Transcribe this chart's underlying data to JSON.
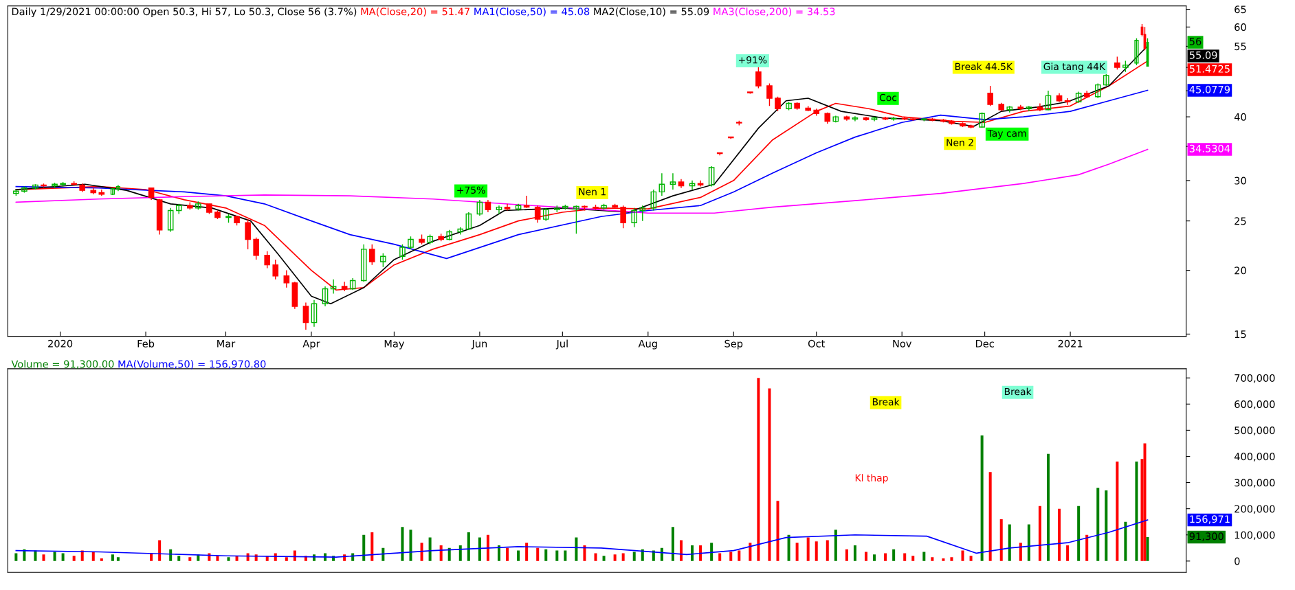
{
  "chart_data": [
    {
      "type": "candlestick",
      "title": "Daily 1/29/2021 00:00:00 Open 50.3, Hi 57, Lo 50.3, Close 56 (3.7%)",
      "log": true,
      "legend": "top left",
      "xlim": [
        "2019-12-13",
        "2021-02-12"
      ],
      "xticks": [
        {
          "value": "2020-01-01",
          "label": "2020"
        },
        {
          "value": "2020-02-01",
          "label": "Feb"
        },
        {
          "value": "2020-03-01",
          "label": "Mar"
        },
        {
          "value": "2020-04-01",
          "label": "Apr"
        },
        {
          "value": "2020-05-01",
          "label": "May"
        },
        {
          "value": "2020-06-01",
          "label": "Jun"
        },
        {
          "value": "2020-07-01",
          "label": "Jul"
        },
        {
          "value": "2020-08-01",
          "label": "Aug"
        },
        {
          "value": "2020-09-01",
          "label": "Sep"
        },
        {
          "value": "2020-10-01",
          "label": "Oct"
        },
        {
          "value": "2020-11-01",
          "label": "Nov"
        },
        {
          "value": "2020-12-01",
          "label": "Dec"
        },
        {
          "value": "2021-01-01",
          "label": "2021"
        }
      ],
      "ylim": [
        14.85,
        66
      ],
      "yticks": [
        15,
        20,
        25,
        30,
        {
          "value": 35,
          "label": null
        },
        40,
        {
          "value": 45,
          "label": null
        },
        {
          "value": 50,
          "label": null
        },
        55,
        60,
        65
      ],
      "x": [
        "2019-12-16",
        "2019-12-19",
        "2019-12-23",
        "2019-12-26",
        "2019-12-30",
        "2020-01-02",
        "2020-01-06",
        "2020-01-09",
        "2020-01-13",
        "2020-01-16",
        "2020-01-20",
        "2020-01-22",
        "2020-02-03",
        "2020-02-06",
        "2020-02-10",
        "2020-02-13",
        "2020-02-17",
        "2020-02-20",
        "2020-02-24",
        "2020-02-27",
        "2020-03-02",
        "2020-03-05",
        "2020-03-09",
        "2020-03-12",
        "2020-03-16",
        "2020-03-19",
        "2020-03-23",
        "2020-03-26",
        "2020-03-30",
        "2020-04-02",
        "2020-04-06",
        "2020-04-09",
        "2020-04-13",
        "2020-04-16",
        "2020-04-20",
        "2020-04-23",
        "2020-04-27",
        "2020-05-04",
        "2020-05-07",
        "2020-05-11",
        "2020-05-14",
        "2020-05-18",
        "2020-05-21",
        "2020-05-25",
        "2020-05-28",
        "2020-06-01",
        "2020-06-04",
        "2020-06-08",
        "2020-06-11",
        "2020-06-15",
        "2020-06-18",
        "2020-06-22",
        "2020-06-25",
        "2020-06-29",
        "2020-07-02",
        "2020-07-06",
        "2020-07-09",
        "2020-07-13",
        "2020-07-16",
        "2020-07-20",
        "2020-07-23",
        "2020-07-27",
        "2020-07-30",
        "2020-08-03",
        "2020-08-06",
        "2020-08-10",
        "2020-08-13",
        "2020-08-17",
        "2020-08-20",
        "2020-08-24",
        "2020-08-27",
        "2020-08-31",
        "2020-09-03",
        "2020-09-07",
        "2020-09-10",
        "2020-09-14",
        "2020-09-17",
        "2020-09-21",
        "2020-09-24",
        "2020-09-28",
        "2020-10-01",
        "2020-10-05",
        "2020-10-08",
        "2020-10-12",
        "2020-10-15",
        "2020-10-19",
        "2020-10-22",
        "2020-10-26",
        "2020-10-29",
        "2020-11-02",
        "2020-11-05",
        "2020-11-09",
        "2020-11-12",
        "2020-11-16",
        "2020-11-19",
        "2020-11-23",
        "2020-11-26",
        "2020-11-30",
        "2020-12-03",
        "2020-12-07",
        "2020-12-10",
        "2020-12-14",
        "2020-12-17",
        "2020-12-21",
        "2020-12-24",
        "2020-12-28",
        "2020-12-31",
        "2021-01-04",
        "2021-01-07",
        "2021-01-11",
        "2021-01-14",
        "2021-01-18",
        "2021-01-21",
        "2021-01-25",
        "2021-01-27",
        "2021-01-28",
        "2021-01-29"
      ],
      "ohlc": [
        [
          28.3,
          28.8,
          28.0,
          28.6
        ],
        [
          28.6,
          29.2,
          28.4,
          29.0
        ],
        [
          29.0,
          29.5,
          28.8,
          29.4
        ],
        [
          29.4,
          29.6,
          29.1,
          29.3
        ],
        [
          29.3,
          29.7,
          29.0,
          29.5
        ],
        [
          29.5,
          29.8,
          29.2,
          29.6
        ],
        [
          29.6,
          29.9,
          29.3,
          29.5
        ],
        [
          29.4,
          29.6,
          28.5,
          28.7
        ],
        [
          28.7,
          29.0,
          28.2,
          28.4
        ],
        [
          28.4,
          28.8,
          28.0,
          28.2
        ],
        [
          28.2,
          29.0,
          28.1,
          28.9
        ],
        [
          28.9,
          29.4,
          28.6,
          29.2
        ],
        [
          29.0,
          29.0,
          27.5,
          27.8
        ],
        [
          27.5,
          27.6,
          23.5,
          24.0
        ],
        [
          24.0,
          26.5,
          23.8,
          26.2
        ],
        [
          26.2,
          27.0,
          25.8,
          26.8
        ],
        [
          26.8,
          27.2,
          26.3,
          26.5
        ],
        [
          26.5,
          27.3,
          26.3,
          27.0
        ],
        [
          27.0,
          27.0,
          25.8,
          26.0
        ],
        [
          26.0,
          26.2,
          25.2,
          25.4
        ],
        [
          25.4,
          25.8,
          24.8,
          25.5
        ],
        [
          25.5,
          25.6,
          24.5,
          24.8
        ],
        [
          24.8,
          25.2,
          22.0,
          23.0
        ],
        [
          23.0,
          23.2,
          21.0,
          21.4
        ],
        [
          21.4,
          21.8,
          20.2,
          20.5
        ],
        [
          20.5,
          21.0,
          19.2,
          19.5
        ],
        [
          19.5,
          20.0,
          18.5,
          18.9
        ],
        [
          18.9,
          19.0,
          16.8,
          17.0
        ],
        [
          17.0,
          17.3,
          15.3,
          15.8
        ],
        [
          15.8,
          17.5,
          15.5,
          17.2
        ],
        [
          17.2,
          18.6,
          17.0,
          18.4
        ],
        [
          18.4,
          19.2,
          18.0,
          18.6
        ],
        [
          18.6,
          19.0,
          18.2,
          18.4
        ],
        [
          18.4,
          19.3,
          18.3,
          19.1
        ],
        [
          19.1,
          22.5,
          19.0,
          22.0
        ],
        [
          22.0,
          22.5,
          20.5,
          20.8
        ],
        [
          20.8,
          21.6,
          20.3,
          21.3
        ],
        [
          21.3,
          22.5,
          21.0,
          22.2
        ],
        [
          22.2,
          23.3,
          22.0,
          23.0
        ],
        [
          23.0,
          23.5,
          22.5,
          22.7
        ],
        [
          22.7,
          23.5,
          22.5,
          23.3
        ],
        [
          23.3,
          23.6,
          22.8,
          23.0
        ],
        [
          23.0,
          24.0,
          22.9,
          23.8
        ],
        [
          23.8,
          24.3,
          23.5,
          24.1
        ],
        [
          24.1,
          26.0,
          24.0,
          25.8
        ],
        [
          25.8,
          27.5,
          25.6,
          27.2
        ],
        [
          27.2,
          27.5,
          26.0,
          26.3
        ],
        [
          26.3,
          26.8,
          25.8,
          26.6
        ],
        [
          26.6,
          27.0,
          26.2,
          26.4
        ],
        [
          26.4,
          27.0,
          26.2,
          26.8
        ],
        [
          26.8,
          28.0,
          26.5,
          26.6
        ],
        [
          26.6,
          26.8,
          24.8,
          25.2
        ],
        [
          25.2,
          26.5,
          25.0,
          26.3
        ],
        [
          26.3,
          26.8,
          26.0,
          26.5
        ],
        [
          26.5,
          26.9,
          26.3,
          26.7
        ],
        [
          26.4,
          26.8,
          23.6,
          26.7
        ],
        [
          26.7,
          26.8,
          26.2,
          26.6
        ],
        [
          26.6,
          26.9,
          26.3,
          26.5
        ],
        [
          26.5,
          27.0,
          26.3,
          26.8
        ],
        [
          26.8,
          27.0,
          26.5,
          26.6
        ],
        [
          26.6,
          26.8,
          24.2,
          24.8
        ],
        [
          24.8,
          26.5,
          24.3,
          26.2
        ],
        [
          26.2,
          26.8,
          25.0,
          26.5
        ],
        [
          26.5,
          28.8,
          26.2,
          28.5
        ],
        [
          28.5,
          31.0,
          28.0,
          29.5
        ],
        [
          29.5,
          31.0,
          28.8,
          29.8
        ],
        [
          29.8,
          30.2,
          29.0,
          29.3
        ],
        [
          29.3,
          30.0,
          28.8,
          29.6
        ],
        [
          29.6,
          30.0,
          29.2,
          29.4
        ],
        [
          29.4,
          32.0,
          29.2,
          31.8
        ],
        [
          34.0,
          34.0,
          33.6,
          33.9
        ],
        [
          36.5,
          36.5,
          36.2,
          36.4
        ],
        [
          39.0,
          39.3,
          38.5,
          38.9
        ],
        [
          44.7,
          44.7,
          44.4,
          44.6
        ],
        [
          49.0,
          50.0,
          45.5,
          46.0
        ],
        [
          46.0,
          46.5,
          42.0,
          43.5
        ],
        [
          43.5,
          43.8,
          41.0,
          41.5
        ],
        [
          41.5,
          42.8,
          41.2,
          42.5
        ],
        [
          42.5,
          42.7,
          41.3,
          41.6
        ],
        [
          41.6,
          42.0,
          41.0,
          41.2
        ],
        [
          41.2,
          41.5,
          40.2,
          40.6
        ],
        [
          40.6,
          40.8,
          38.8,
          39.2
        ],
        [
          39.2,
          40.2,
          39.0,
          40.0
        ],
        [
          40.0,
          40.2,
          39.3,
          39.6
        ],
        [
          39.6,
          40.1,
          39.2,
          39.8
        ],
        [
          39.8,
          40.0,
          39.3,
          39.5
        ],
        [
          39.5,
          40.0,
          39.2,
          39.8
        ],
        [
          39.8,
          40.0,
          39.4,
          39.6
        ],
        [
          39.6,
          40.0,
          39.3,
          39.7
        ],
        [
          39.7,
          40.0,
          39.4,
          39.6
        ],
        [
          39.6,
          39.9,
          39.3,
          39.5
        ],
        [
          39.5,
          39.8,
          39.2,
          39.6
        ],
        [
          39.6,
          39.8,
          39.2,
          39.4
        ],
        [
          39.4,
          39.6,
          39.0,
          39.2
        ],
        [
          39.2,
          39.4,
          38.6,
          38.8
        ],
        [
          38.8,
          39.0,
          38.2,
          38.4
        ],
        [
          38.4,
          38.6,
          38.0,
          38.2
        ],
        [
          38.2,
          40.8,
          38.1,
          40.6
        ],
        [
          44.5,
          46.0,
          42.0,
          42.3
        ],
        [
          42.3,
          42.6,
          41.0,
          41.3
        ],
        [
          41.3,
          42.0,
          40.8,
          41.8
        ],
        [
          41.8,
          42.2,
          41.2,
          41.5
        ],
        [
          41.5,
          42.0,
          41.0,
          41.8
        ],
        [
          41.8,
          42.5,
          41.0,
          41.3
        ],
        [
          41.3,
          45.0,
          41.2,
          44.0
        ],
        [
          44.0,
          44.5,
          42.8,
          43.0
        ],
        [
          43.0,
          43.5,
          42.2,
          42.8
        ],
        [
          42.8,
          44.8,
          42.6,
          44.5
        ],
        [
          44.5,
          45.0,
          43.5,
          43.8
        ],
        [
          43.8,
          46.5,
          43.5,
          46.2
        ],
        [
          46.2,
          48.5,
          46.0,
          48.2
        ],
        [
          51.0,
          52.5,
          49.5,
          50.0
        ],
        [
          50.0,
          51.5,
          49.0,
          50.5
        ],
        [
          51.0,
          57.0,
          50.5,
          56.5
        ],
        [
          60.0,
          60.8,
          57.5,
          58.0
        ],
        [
          58.0,
          60.0,
          54.0,
          54.5
        ],
        [
          50.3,
          57,
          50.3,
          56
        ]
      ],
      "colors": [
        "#00b400",
        "#00b400",
        "#00b400",
        "#ff0000",
        "#00b400",
        "#00b400",
        "#ff0000",
        "#ff0000",
        "#ff0000",
        "#ff0000",
        "#00b400",
        "#00b400",
        "#ff0000",
        "#ff0000",
        "#00b400",
        "#00b400",
        "#ff0000",
        "#00b400",
        "#ff0000",
        "#ff0000",
        "#00b400",
        "#ff0000",
        "#ff0000",
        "#ff0000",
        "#ff0000",
        "#ff0000",
        "#ff0000",
        "#ff0000",
        "#ff0000",
        "#00b400",
        "#00b400",
        "#00b400",
        "#ff0000",
        "#00b400",
        "#00b400",
        "#ff0000",
        "#00b400",
        "#00b400",
        "#00b400",
        "#ff0000",
        "#00b400",
        "#ff0000",
        "#00b400",
        "#00b400",
        "#00b400",
        "#00b400",
        "#ff0000",
        "#00b400",
        "#ff0000",
        "#00b400",
        "#ff0000",
        "#ff0000",
        "#00b400",
        "#00b400",
        "#00b400",
        "#00b400",
        "#ff0000",
        "#ff0000",
        "#00b400",
        "#ff0000",
        "#ff0000",
        "#00b400",
        "#00b400",
        "#00b400",
        "#00b400",
        "#00b400",
        "#ff0000",
        "#00b400",
        "#ff0000",
        "#00b400",
        "#ff0000",
        "#ff0000",
        "#ff0000",
        "#ff0000",
        "#ff0000",
        "#ff0000",
        "#ff0000",
        "#00b400",
        "#ff0000",
        "#ff0000",
        "#ff0000",
        "#ff0000",
        "#00b400",
        "#ff0000",
        "#00b400",
        "#ff0000",
        "#00b400",
        "#ff0000",
        "#00b400",
        "#ff0000",
        "#ff0000",
        "#00b400",
        "#ff0000",
        "#ff0000",
        "#ff0000",
        "#ff0000",
        "#ff0000",
        "#00b400",
        "#ff0000",
        "#ff0000",
        "#00b400",
        "#ff0000",
        "#00b400",
        "#ff0000",
        "#00b400",
        "#ff0000",
        "#ff0000",
        "#00b400",
        "#ff0000",
        "#00b400",
        "#00b400",
        "#ff0000",
        "#00b400",
        "#00b400",
        "#ff0000",
        "#ff0000",
        "#00b400"
      ],
      "series": [
        {
          "name": "MA(Close,20) = 51.47",
          "type": "line",
          "color": "#ff0000",
          "x": [
            "2019-12-16",
            "2020-01-15",
            "2020-02-01",
            "2020-02-15",
            "2020-03-01",
            "2020-03-15",
            "2020-04-01",
            "2020-04-10",
            "2020-04-20",
            "2020-05-01",
            "2020-05-15",
            "2020-06-01",
            "2020-06-15",
            "2020-07-01",
            "2020-07-15",
            "2020-08-01",
            "2020-08-20",
            "2020-09-01",
            "2020-09-15",
            "2020-10-01",
            "2020-10-08",
            "2020-10-20",
            "2020-11-01",
            "2020-11-20",
            "2020-12-01",
            "2020-12-15",
            "2021-01-01",
            "2021-01-15",
            "2021-01-29"
          ],
          "values": [
            28.8,
            29.2,
            28.8,
            27.5,
            26.5,
            24.5,
            20.0,
            18.3,
            18.5,
            20.5,
            22.0,
            23.5,
            25.0,
            26.0,
            26.5,
            26.4,
            27.8,
            30.0,
            36.0,
            41.0,
            42.5,
            41.5,
            40.0,
            39.2,
            39.0,
            41.0,
            42.0,
            46.0,
            51.47
          ]
        },
        {
          "name": "MA1(Close,50) = 45.08",
          "type": "line",
          "color": "#0000ff",
          "x": [
            "2019-12-16",
            "2020-01-15",
            "2020-02-15",
            "2020-03-01",
            "2020-03-15",
            "2020-04-01",
            "2020-04-15",
            "2020-05-01",
            "2020-05-20",
            "2020-06-15",
            "2020-07-15",
            "2020-08-01",
            "2020-08-20",
            "2020-09-01",
            "2020-09-15",
            "2020-10-01",
            "2020-10-15",
            "2020-11-01",
            "2020-11-15",
            "2020-12-01",
            "2020-12-15",
            "2021-01-01",
            "2021-01-15",
            "2021-01-29"
          ],
          "values": [
            29.2,
            29.0,
            28.5,
            28.0,
            27.0,
            25.0,
            23.5,
            22.5,
            21.1,
            23.5,
            25.5,
            26.2,
            26.8,
            28.5,
            31.0,
            34.0,
            36.5,
            39.0,
            40.3,
            39.5,
            40.0,
            41.0,
            43.0,
            45.08
          ]
        },
        {
          "name": "MA2(Close,10) = 55.09",
          "type": "line",
          "color": "#000000",
          "x": [
            "2019-12-16",
            "2020-01-10",
            "2020-01-25",
            "2020-02-10",
            "2020-02-25",
            "2020-03-10",
            "2020-03-20",
            "2020-04-01",
            "2020-04-08",
            "2020-04-20",
            "2020-05-01",
            "2020-05-15",
            "2020-06-01",
            "2020-06-10",
            "2020-07-01",
            "2020-07-25",
            "2020-08-10",
            "2020-08-25",
            "2020-09-10",
            "2020-09-20",
            "2020-09-28",
            "2020-10-10",
            "2020-10-25",
            "2020-11-15",
            "2020-11-27",
            "2020-12-07",
            "2020-12-20",
            "2020-12-31",
            "2021-01-15",
            "2021-01-29"
          ],
          "values": [
            28.8,
            29.5,
            28.7,
            27.0,
            26.5,
            25.0,
            21.5,
            17.8,
            17.2,
            18.5,
            21.0,
            22.8,
            24.5,
            26.2,
            26.5,
            26.0,
            28.0,
            29.5,
            38.0,
            43.0,
            43.5,
            41.0,
            39.8,
            39.3,
            38.3,
            41.0,
            41.8,
            42.8,
            46.0,
            55.09
          ]
        },
        {
          "name": "MA3(Close,200) = 34.53",
          "type": "line",
          "color": "#ff00ff",
          "x": [
            "2019-12-16",
            "2020-01-15",
            "2020-02-15",
            "2020-03-15",
            "2020-04-15",
            "2020-05-15",
            "2020-06-15",
            "2020-07-15",
            "2020-08-01",
            "2020-08-25",
            "2020-09-15",
            "2020-10-15",
            "2020-11-15",
            "2020-12-15",
            "2021-01-04",
            "2021-01-15",
            "2021-01-29"
          ],
          "values": [
            27.2,
            27.6,
            27.9,
            28.1,
            28.0,
            27.6,
            26.9,
            26.3,
            25.9,
            25.9,
            26.6,
            27.4,
            28.3,
            29.6,
            30.8,
            32.3,
            34.53
          ]
        }
      ],
      "annotations": [
        "+75%",
        "Nen 1",
        "+91%",
        "Coc",
        "Nen 2",
        "Tay cam",
        "Break 44.5K",
        "Gia tang 44K",
        "56",
        "55.09",
        "51.4725",
        "45.0779",
        "34.5304"
      ]
    },
    {
      "type": "bar",
      "legend": "top left",
      "tick_labels": "y",
      "xlim": [
        "2019-12-13",
        "2021-02-12"
      ],
      "ylim": [
        -43000,
        735000
      ],
      "yticks": [
        0,
        {
          "value": 100000,
          "label": "100,000"
        },
        {
          "value": 200000,
          "label": "200,000"
        },
        {
          "value": 300000,
          "label": "300,000"
        },
        {
          "value": 400000,
          "label": "400,000"
        },
        {
          "value": 500000,
          "label": "500,000"
        },
        {
          "value": 600000,
          "label": "600,000"
        },
        {
          "value": 700000,
          "label": "700,000"
        }
      ],
      "x": [
        "2019-12-16",
        "2019-12-19",
        "2019-12-23",
        "2019-12-26",
        "2019-12-30",
        "2020-01-02",
        "2020-01-06",
        "2020-01-09",
        "2020-01-13",
        "2020-01-16",
        "2020-01-20",
        "2020-01-22",
        "2020-02-03",
        "2020-02-06",
        "2020-02-10",
        "2020-02-13",
        "2020-02-17",
        "2020-02-20",
        "2020-02-24",
        "2020-02-27",
        "2020-03-02",
        "2020-03-05",
        "2020-03-09",
        "2020-03-12",
        "2020-03-16",
        "2020-03-19",
        "2020-03-23",
        "2020-03-26",
        "2020-03-30",
        "2020-04-02",
        "2020-04-06",
        "2020-04-09",
        "2020-04-13",
        "2020-04-16",
        "2020-04-20",
        "2020-04-23",
        "2020-04-27",
        "2020-05-04",
        "2020-05-07",
        "2020-05-11",
        "2020-05-14",
        "2020-05-18",
        "2020-05-21",
        "2020-05-25",
        "2020-05-28",
        "2020-06-01",
        "2020-06-04",
        "2020-06-08",
        "2020-06-11",
        "2020-06-15",
        "2020-06-18",
        "2020-06-22",
        "2020-06-25",
        "2020-06-29",
        "2020-07-02",
        "2020-07-06",
        "2020-07-09",
        "2020-07-13",
        "2020-07-16",
        "2020-07-20",
        "2020-07-23",
        "2020-07-27",
        "2020-07-30",
        "2020-08-03",
        "2020-08-06",
        "2020-08-10",
        "2020-08-13",
        "2020-08-17",
        "2020-08-20",
        "2020-08-24",
        "2020-08-27",
        "2020-08-31",
        "2020-09-03",
        "2020-09-07",
        "2020-09-10",
        "2020-09-14",
        "2020-09-17",
        "2020-09-21",
        "2020-09-24",
        "2020-09-28",
        "2020-10-01",
        "2020-10-05",
        "2020-10-08",
        "2020-10-12",
        "2020-10-15",
        "2020-10-19",
        "2020-10-22",
        "2020-10-26",
        "2020-10-29",
        "2020-11-02",
        "2020-11-05",
        "2020-11-09",
        "2020-11-12",
        "2020-11-16",
        "2020-11-19",
        "2020-11-23",
        "2020-11-26",
        "2020-11-30",
        "2020-12-03",
        "2020-12-07",
        "2020-12-10",
        "2020-12-14",
        "2020-12-17",
        "2020-12-21",
        "2020-12-24",
        "2020-12-28",
        "2020-12-31",
        "2021-01-04",
        "2021-01-07",
        "2021-01-11",
        "2021-01-14",
        "2021-01-18",
        "2021-01-21",
        "2021-01-25",
        "2021-01-27",
        "2021-01-28",
        "2021-01-29"
      ],
      "series": [
        {
          "name": "Volume = 91,300.00",
          "type": "bar",
          "color": "#008000",
          "values": [
            30000,
            45000,
            40000,
            25000,
            35000,
            30000,
            20000,
            40000,
            35000,
            10000,
            25000,
            15000,
            30000,
            80000,
            45000,
            20000,
            15000,
            25000,
            30000,
            20000,
            15000,
            20000,
            30000,
            25000,
            20000,
            30000,
            15000,
            40000,
            20000,
            25000,
            30000,
            20000,
            25000,
            30000,
            100000,
            110000,
            50000,
            130000,
            120000,
            70000,
            90000,
            60000,
            50000,
            60000,
            110000,
            90000,
            100000,
            60000,
            50000,
            40000,
            70000,
            50000,
            45000,
            40000,
            40000,
            90000,
            60000,
            30000,
            20000,
            25000,
            30000,
            35000,
            45000,
            40000,
            50000,
            130000,
            80000,
            60000,
            60000,
            70000,
            30000,
            35000,
            40000,
            70000,
            700000,
            660000,
            230000,
            100000,
            70000,
            90000,
            75000,
            80000,
            120000,
            45000,
            60000,
            35000,
            25000,
            30000,
            45000,
            30000,
            20000,
            35000,
            15000,
            10000,
            15000,
            40000,
            20000,
            480000,
            340000,
            160000,
            140000,
            70000,
            140000,
            210000,
            410000,
            200000,
            60000,
            210000,
            100000,
            280000,
            270000,
            380000,
            150000,
            380000,
            390000,
            450000,
            91300
          ],
          "colors": [
            "#008000",
            "#008000",
            "#008000",
            "#ff0000",
            "#008000",
            "#008000",
            "#ff0000",
            "#ff0000",
            "#ff0000",
            "#ff0000",
            "#008000",
            "#008000",
            "#ff0000",
            "#ff0000",
            "#008000",
            "#008000",
            "#ff0000",
            "#008000",
            "#ff0000",
            "#ff0000",
            "#008000",
            "#ff0000",
            "#ff0000",
            "#ff0000",
            "#ff0000",
            "#ff0000",
            "#ff0000",
            "#ff0000",
            "#ff0000",
            "#008000",
            "#008000",
            "#008000",
            "#ff0000",
            "#008000",
            "#008000",
            "#ff0000",
            "#008000",
            "#008000",
            "#008000",
            "#ff0000",
            "#008000",
            "#ff0000",
            "#008000",
            "#008000",
            "#008000",
            "#008000",
            "#ff0000",
            "#008000",
            "#ff0000",
            "#008000",
            "#ff0000",
            "#ff0000",
            "#008000",
            "#008000",
            "#008000",
            "#008000",
            "#ff0000",
            "#ff0000",
            "#008000",
            "#ff0000",
            "#ff0000",
            "#008000",
            "#008000",
            "#008000",
            "#008000",
            "#008000",
            "#ff0000",
            "#008000",
            "#ff0000",
            "#008000",
            "#ff0000",
            "#ff0000",
            "#ff0000",
            "#ff0000",
            "#ff0000",
            "#ff0000",
            "#ff0000",
            "#008000",
            "#ff0000",
            "#ff0000",
            "#ff0000",
            "#ff0000",
            "#008000",
            "#ff0000",
            "#008000",
            "#ff0000",
            "#008000",
            "#ff0000",
            "#008000",
            "#ff0000",
            "#ff0000",
            "#008000",
            "#ff0000",
            "#ff0000",
            "#ff0000",
            "#ff0000",
            "#ff0000",
            "#008000",
            "#ff0000",
            "#ff0000",
            "#008000",
            "#ff0000",
            "#008000",
            "#ff0000",
            "#008000",
            "#ff0000",
            "#ff0000",
            "#008000",
            "#ff0000",
            "#008000",
            "#008000",
            "#ff0000",
            "#008000",
            "#008000",
            "#ff0000",
            "#ff0000",
            "#008000"
          ]
        },
        {
          "name": "MA(Volume,50) = 156,970.80",
          "type": "line",
          "color": "#0000ff",
          "x": [
            "2019-12-16",
            "2020-01-15",
            "2020-03-01",
            "2020-04-10",
            "2020-05-15",
            "2020-06-15",
            "2020-07-15",
            "2020-08-15",
            "2020-09-01",
            "2020-09-20",
            "2020-10-15",
            "2020-11-10",
            "2020-11-28",
            "2020-12-10",
            "2020-12-31",
            "2021-01-15",
            "2021-01-29"
          ],
          "values": [
            40000,
            35000,
            20000,
            15000,
            40000,
            55000,
            50000,
            25000,
            40000,
            90000,
            100000,
            95000,
            30000,
            50000,
            70000,
            110000,
            156970.8
          ]
        }
      ],
      "annotations": [
        "Break",
        "Kl thap",
        "Break",
        "156,971",
        "91,300"
      ]
    }
  ]
}
